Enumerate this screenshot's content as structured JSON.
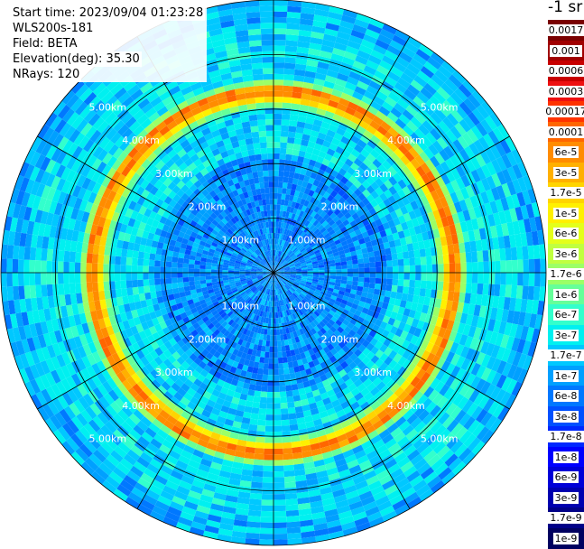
{
  "info": {
    "start_time": "Start time: 2023/09/04 01:23:28",
    "instrument": "WLS200s-181",
    "field": "Field: BETA",
    "elevation": "Elevation(deg): 35.30",
    "nrays": "NRays: 120"
  },
  "colorbar": {
    "units": "-1 sr",
    "labels": [
      "0.0017",
      "0.001",
      "0.0006",
      "0.0003",
      "0.00017",
      "0.0001",
      "6e-5",
      "3e-5",
      "1.7e-5",
      "1e-5",
      "6e-6",
      "3e-6",
      "1.7e-6",
      "1e-6",
      "6e-7",
      "3e-7",
      "1.7e-7",
      "1e-7",
      "6e-8",
      "3e-8",
      "1.7e-8",
      "1e-8",
      "6e-9",
      "3e-9",
      "1.7e-9",
      "1e-9"
    ],
    "colors": [
      "#7a0000",
      "#a00000",
      "#c80000",
      "#ee1111",
      "#ff3300",
      "#ff6600",
      "#ff8c00",
      "#ffb000",
      "#ffd400",
      "#fff000",
      "#e4ff1a",
      "#c0ff40",
      "#9cff66",
      "#66ff99",
      "#33ffcc",
      "#00f0f0",
      "#00c8ff",
      "#00a0ff",
      "#0078ff",
      "#0050ff",
      "#0028ff",
      "#0000ff",
      "#0000d8",
      "#0000b0",
      "#000088",
      "#000060"
    ]
  },
  "chart_data": {
    "type": "heatmap",
    "subtype": "polar PPI (plan position indicator)",
    "field": "BETA",
    "units": "-1 sr",
    "range_rings_km": [
      1.0,
      2.0,
      3.0,
      4.0,
      5.0
    ],
    "ring_labels": [
      "1.00km",
      "2.00km",
      "3.00km",
      "4.00km",
      "5.00km"
    ],
    "ring_label_directions": [
      "north-west",
      "north-east",
      "south-west",
      "south-east"
    ],
    "radial_spokes_deg": [
      0,
      30,
      60,
      90,
      120,
      150,
      180,
      210,
      240,
      270,
      300,
      330
    ],
    "max_range_km": 5.0,
    "n_rays": 120,
    "description_values": {
      "background_level": "1e-7 to 3e-7",
      "inner_region_level": "1e-8 to 6e-8",
      "ring_feature_range_km": 3.3,
      "ring_feature_level": "3e-5 to 6e-5"
    }
  }
}
